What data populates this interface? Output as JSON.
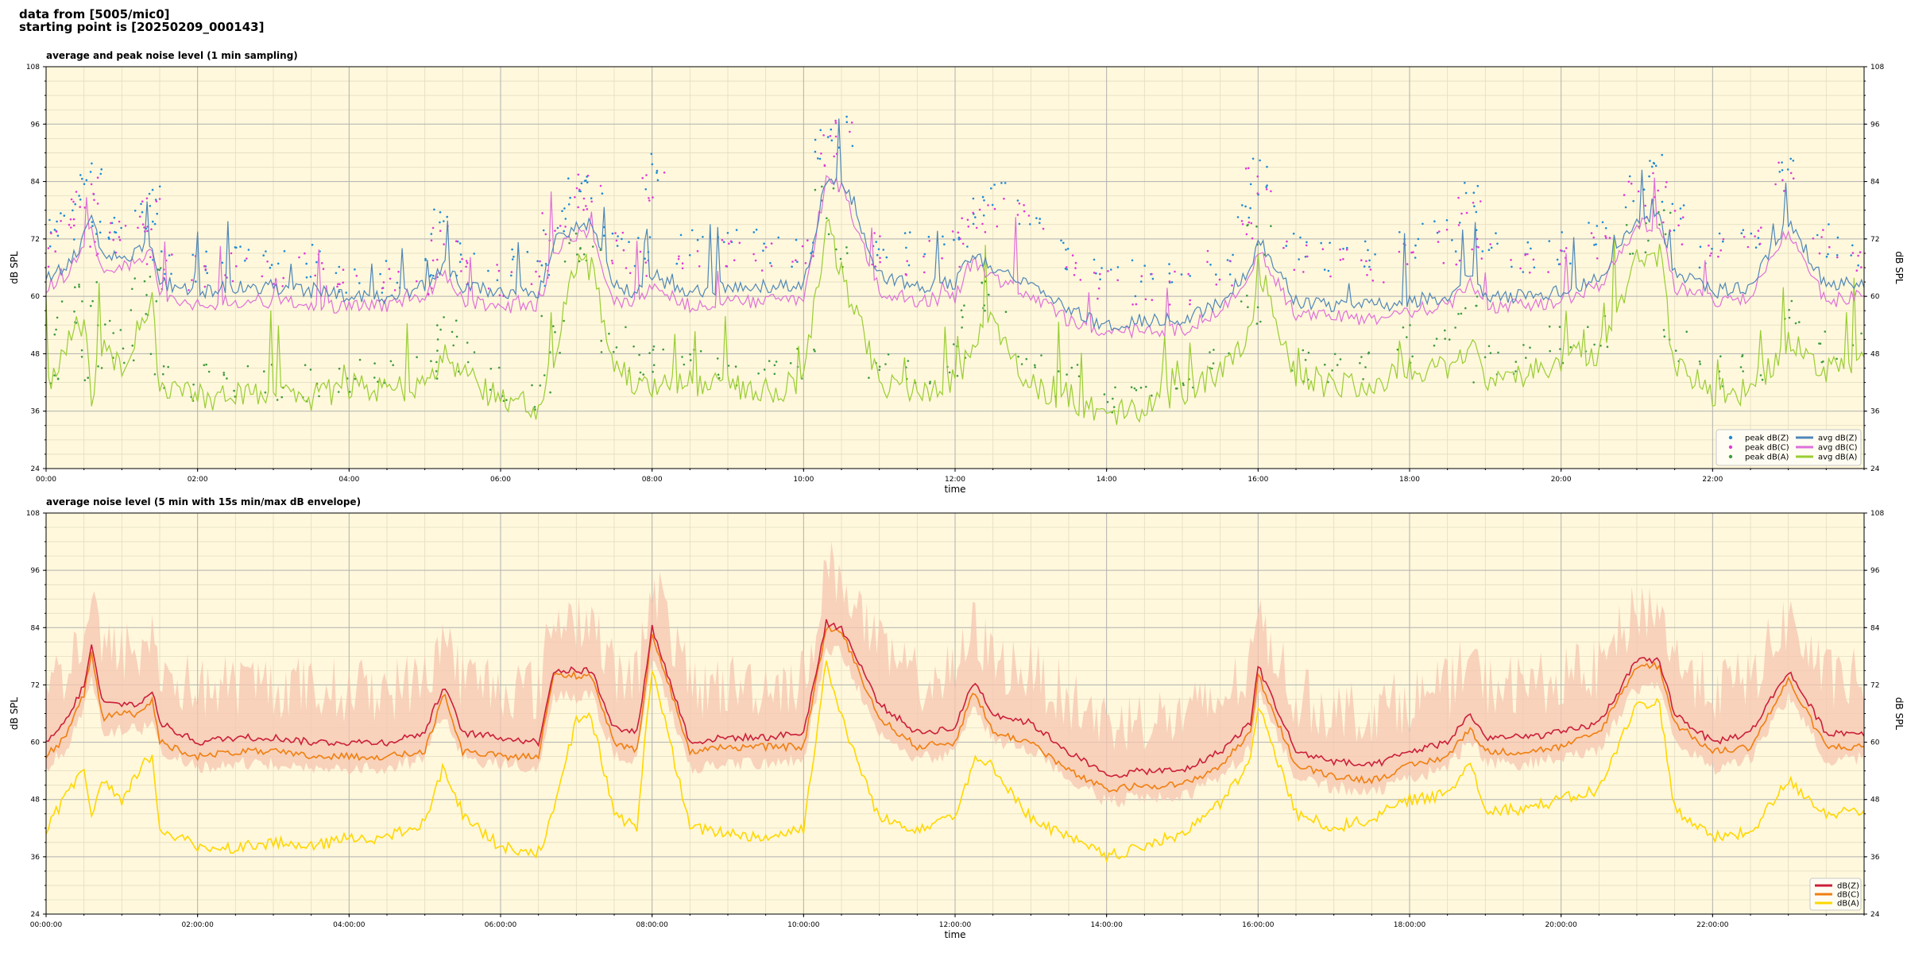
{
  "header": {
    "line1": "data from [5005/mic0]",
    "line2": "starting point is [20250209_000143]"
  },
  "colors": {
    "plot_bg": "#fff8dc",
    "grid_major": "#b0b0b0",
    "grid_minor": "#e3dcc0",
    "peak_z": "#1f8ad6",
    "peak_c": "#e03ad8",
    "peak_a": "#3f9b3f",
    "avg_z": "#4f86b8",
    "avg_c": "#df70d8",
    "avg_a": "#9acd32",
    "db_z": "#cc1f3a",
    "db_c": "#f07f10",
    "db_a": "#ffd700",
    "env_fill": "#f6c6b0"
  },
  "chart_data": [
    {
      "type": "line",
      "title": "average and peak noise level (1 min sampling)",
      "xlabel": "time",
      "ylabel": "dB SPL",
      "ylim": [
        24,
        108
      ],
      "xlim_hours": [
        0,
        24
      ],
      "yticks": [
        "24",
        "36",
        "48",
        "60",
        "72",
        "84",
        "96",
        "108"
      ],
      "xticks": [
        "00:00",
        "02:00",
        "04:00",
        "06:00",
        "08:00",
        "10:00",
        "12:00",
        "14:00",
        "16:00",
        "18:00",
        "20:00",
        "22:00"
      ],
      "grid": true,
      "legend_position": "bottom-right",
      "legend": [
        "peak dB(Z)",
        "peak dB(C)",
        "peak dB(A)",
        "avg dB(Z)",
        "avg dB(C)",
        "avg dB(A)"
      ],
      "x_hours": [
        0,
        0.25,
        0.5,
        0.6,
        0.75,
        1,
        1.25,
        1.4,
        1.5,
        2,
        2.5,
        3,
        3.5,
        4,
        4.5,
        5,
        5.25,
        5.5,
        6,
        6.5,
        6.7,
        7,
        7.2,
        7.5,
        7.8,
        8,
        8.5,
        9,
        9.5,
        10,
        10.3,
        10.5,
        11,
        11.5,
        12,
        12.25,
        12.5,
        13,
        13.5,
        14,
        14.5,
        15,
        15.5,
        15.9,
        16,
        16.5,
        17,
        17.5,
        18,
        18.5,
        18.8,
        19,
        19.5,
        20,
        20.5,
        21,
        21.3,
        21.5,
        22,
        22.5,
        23,
        23.5,
        24
      ],
      "series": [
        {
          "name": "avg dB(Z)",
          "values": [
            64,
            66,
            72,
            76,
            68,
            68,
            70,
            71,
            63,
            61,
            62,
            62,
            61,
            60,
            60,
            62,
            67,
            62,
            61,
            61,
            71,
            75,
            75,
            62,
            61,
            64,
            61,
            62,
            62,
            62,
            85,
            84,
            64,
            62,
            63,
            69,
            66,
            63,
            57,
            54,
            55,
            55,
            59,
            66,
            72,
            59,
            58,
            58,
            59,
            60,
            65,
            60,
            60,
            61,
            64,
            76,
            76,
            65,
            61,
            62,
            76,
            62,
            63
          ]
        },
        {
          "name": "avg dB(C)",
          "values": [
            62,
            64,
            70,
            74,
            66,
            66,
            68,
            69,
            60,
            58,
            59,
            59,
            58,
            58,
            58,
            60,
            65,
            59,
            58,
            58,
            69,
            73,
            73,
            59,
            58,
            62,
            58,
            59,
            59,
            59,
            84,
            83,
            61,
            59,
            60,
            67,
            64,
            60,
            55,
            52,
            53,
            53,
            57,
            64,
            70,
            56,
            56,
            55,
            57,
            58,
            63,
            58,
            58,
            59,
            62,
            75,
            75,
            62,
            59,
            60,
            74,
            59,
            60
          ]
        },
        {
          "name": "avg dB(A)",
          "values": [
            40,
            50,
            55,
            40,
            50,
            45,
            55,
            58,
            40,
            39,
            39,
            39,
            39,
            41,
            40,
            42,
            48,
            44,
            38,
            37,
            47,
            67,
            66,
            45,
            42,
            40,
            42,
            41,
            40,
            42,
            75,
            65,
            42,
            40,
            42,
            50,
            55,
            41,
            39,
            35,
            37,
            40,
            44,
            52,
            67,
            43,
            41,
            42,
            45,
            45,
            50,
            43,
            43,
            47,
            48,
            68,
            69,
            45,
            40,
            40,
            50,
            45,
            46
          ]
        },
        {
          "name": "peak dB(Z)",
          "values": [
            72,
            75,
            82,
            84,
            74,
            74,
            78,
            79,
            68,
            67,
            69,
            68,
            67,
            64,
            64,
            66,
            76,
            68,
            66,
            66,
            76,
            82,
            84,
            72,
            70,
            86,
            70,
            70,
            70,
            70,
            92,
            95,
            72,
            70,
            72,
            78,
            80,
            78,
            68,
            64,
            64,
            64,
            68,
            78,
            86,
            70,
            68,
            68,
            72,
            72,
            80,
            70,
            68,
            70,
            72,
            82,
            86,
            76,
            70,
            74,
            88,
            72,
            70
          ]
        },
        {
          "name": "peak dB(C)",
          "values": [
            70,
            73,
            80,
            82,
            72,
            72,
            76,
            77,
            66,
            65,
            67,
            66,
            65,
            62,
            62,
            64,
            74,
            66,
            64,
            64,
            74,
            80,
            82,
            70,
            68,
            84,
            68,
            68,
            68,
            68,
            90,
            93,
            70,
            68,
            70,
            76,
            78,
            76,
            66,
            62,
            62,
            62,
            66,
            76,
            84,
            68,
            66,
            66,
            70,
            70,
            78,
            68,
            66,
            68,
            70,
            80,
            84,
            74,
            68,
            72,
            86,
            70,
            68
          ]
        },
        {
          "name": "peak dB(A)",
          "values": [
            44,
            56,
            60,
            46,
            56,
            50,
            60,
            62,
            44,
            42,
            42,
            42,
            42,
            44,
            43,
            46,
            54,
            48,
            42,
            40,
            52,
            70,
            70,
            50,
            46,
            46,
            46,
            45,
            44,
            46,
            80,
            70,
            46,
            44,
            46,
            56,
            60,
            46,
            42,
            38,
            40,
            44,
            48,
            58,
            72,
            46,
            44,
            46,
            50,
            50,
            56,
            46,
            46,
            50,
            52,
            72,
            74,
            50,
            44,
            44,
            56,
            50,
            50
          ]
        }
      ]
    },
    {
      "type": "line",
      "title": "average noise level (5 min with 15s min/max dB envelope)",
      "xlabel": "time",
      "ylabel": "dB SPL",
      "ylim": [
        24,
        108
      ],
      "xlim_hours": [
        0,
        24
      ],
      "yticks": [
        "24",
        "36",
        "48",
        "60",
        "72",
        "84",
        "96",
        "108"
      ],
      "xticks": [
        "00:00:00",
        "02:00:00",
        "04:00:00",
        "06:00:00",
        "08:00:00",
        "10:00:00",
        "12:00:00",
        "14:00:00",
        "16:00:00",
        "18:00:00",
        "20:00:00",
        "22:00:00"
      ],
      "grid": true,
      "legend_position": "bottom-right",
      "legend": [
        "dB(Z)",
        "dB(C)",
        "dB(A)"
      ],
      "x_hours": [
        0,
        0.25,
        0.5,
        0.6,
        0.75,
        1,
        1.25,
        1.4,
        1.5,
        2,
        2.5,
        3,
        3.5,
        4,
        4.5,
        5,
        5.25,
        5.5,
        6,
        6.5,
        6.7,
        7,
        7.2,
        7.5,
        7.8,
        8,
        8.5,
        9,
        9.5,
        10,
        10.3,
        10.5,
        11,
        11.5,
        12,
        12.25,
        12.5,
        13,
        13.5,
        14,
        14.5,
        15,
        15.5,
        15.9,
        16,
        16.5,
        17,
        17.5,
        18,
        18.5,
        18.8,
        19,
        19.5,
        20,
        20.5,
        21,
        21.3,
        21.5,
        22,
        22.5,
        23,
        23.5,
        24
      ],
      "series": [
        {
          "name": "dB(Z)",
          "values": [
            60,
            64,
            72,
            80,
            68,
            68,
            68,
            71,
            64,
            60,
            61,
            61,
            60,
            60,
            60,
            62,
            72,
            62,
            61,
            60,
            75,
            75,
            75,
            63,
            62,
            84,
            60,
            61,
            61,
            62,
            85,
            84,
            68,
            62,
            63,
            73,
            66,
            64,
            58,
            53,
            54,
            54,
            58,
            64,
            76,
            58,
            56,
            55,
            58,
            60,
            66,
            61,
            61,
            62,
            64,
            77,
            77,
            66,
            60,
            62,
            75,
            62,
            62
          ]
        },
        {
          "name": "dB(C)",
          "values": [
            57,
            61,
            70,
            79,
            65,
            66,
            66,
            69,
            60,
            57,
            58,
            58,
            57,
            57,
            57,
            58,
            70,
            58,
            57,
            57,
            74,
            74,
            74,
            60,
            58,
            83,
            58,
            59,
            59,
            59,
            84,
            83,
            65,
            59,
            60,
            71,
            62,
            60,
            54,
            50,
            51,
            51,
            55,
            62,
            74,
            55,
            53,
            52,
            55,
            57,
            63,
            58,
            58,
            59,
            62,
            76,
            76,
            64,
            58,
            59,
            73,
            59,
            59
          ]
        },
        {
          "name": "dB(A)",
          "values": [
            42,
            48,
            55,
            44,
            52,
            47,
            55,
            57,
            42,
            38,
            38,
            39,
            38,
            40,
            40,
            43,
            55,
            45,
            38,
            37,
            45,
            65,
            65,
            45,
            42,
            76,
            42,
            41,
            40,
            42,
            77,
            65,
            44,
            42,
            45,
            56,
            55,
            44,
            40,
            36,
            38,
            41,
            47,
            56,
            68,
            45,
            42,
            44,
            48,
            49,
            56,
            46,
            46,
            48,
            50,
            68,
            68,
            46,
            40,
            41,
            52,
            45,
            46
          ]
        }
      ]
    }
  ]
}
